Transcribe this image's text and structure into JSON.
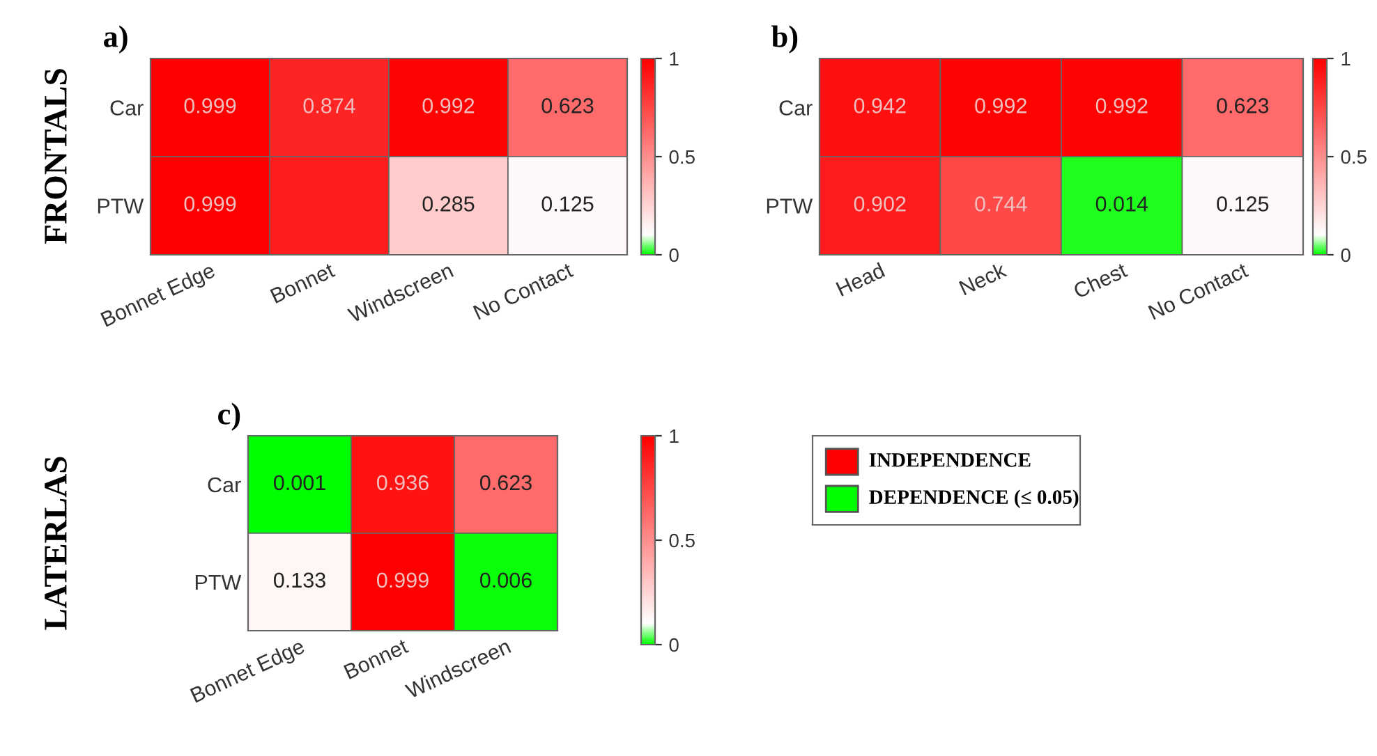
{
  "chart_data": [
    {
      "type": "heatmap",
      "title": "a)",
      "annotations": [
        "FRONTALS"
      ],
      "categories": [
        "Bonnet Edge",
        "Bonnet",
        "Windscreen",
        "No Contact"
      ],
      "y_categories": [
        "Car",
        "PTW"
      ],
      "cells": [
        [
          0.999,
          0.874,
          0.992,
          0.623
        ],
        [
          0.999,
          0.9,
          0.285,
          0.125
        ]
      ],
      "cell_labels": [
        [
          "0.999",
          "0.874",
          "0.992",
          "0.623"
        ],
        [
          "0.999",
          null,
          "0.285",
          "0.125"
        ]
      ],
      "clim": [
        0,
        1
      ],
      "cticks": [
        0,
        0.5,
        1
      ]
    },
    {
      "type": "heatmap",
      "title": "b)",
      "categories": [
        "Head",
        "Neck",
        "Chest",
        "No Contact"
      ],
      "y_categories": [
        "Car",
        "PTW"
      ],
      "cells": [
        [
          0.942,
          0.992,
          0.992,
          0.623
        ],
        [
          0.902,
          0.744,
          0.014,
          0.125
        ]
      ],
      "data_labels": true,
      "clim": [
        0,
        1
      ],
      "cticks": [
        0,
        0.5,
        1
      ]
    },
    {
      "type": "heatmap",
      "title": "c)",
      "annotations": [
        "LATERLAS"
      ],
      "categories": [
        "Bonnet Edge",
        "Bonnet",
        "Windscreen"
      ],
      "y_categories": [
        "Car",
        "PTW"
      ],
      "cells": [
        [
          0.001,
          0.936,
          0.623
        ],
        [
          0.133,
          0.999,
          0.006
        ]
      ],
      "data_labels": true,
      "clim": [
        0,
        1
      ],
      "cticks": [
        0,
        0.5,
        1
      ]
    },
    {
      "type": "other",
      "categories": [
        "INDEPENDENCE",
        "DEPENDENCE (≤ 0.05)"
      ],
      "colors": [
        "#ff0000",
        "#00ff00"
      ]
    }
  ]
}
